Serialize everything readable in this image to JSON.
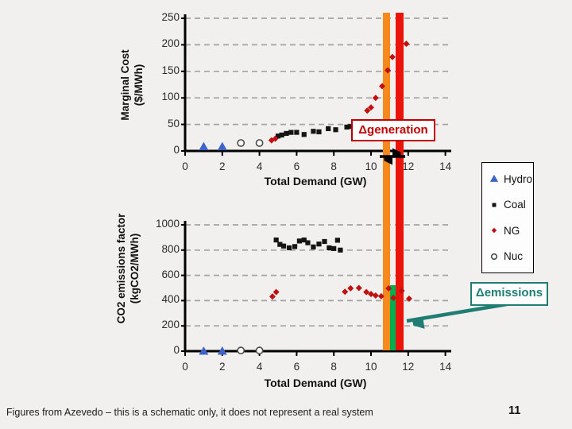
{
  "slide": {
    "footer": "Figures from Azevedo – this is a schematic only, it does not represent a real system",
    "page_number": "11"
  },
  "colors": {
    "hydro_blue": "#3E63C9",
    "coal_black": "#141414",
    "ng_red": "#C01010",
    "nuc_gray": "#4A4A4A",
    "orange_bar": "#F6891B",
    "red_bar": "#EB140B",
    "green_bar": "#00B050",
    "annotation_red": "#C00000",
    "annotation_teal": "#1F7D74",
    "gridline": "#A3A3A3",
    "axis": "#000000",
    "background": "#F1F0EE"
  },
  "legend": {
    "items": [
      {
        "label": "Hydro",
        "marker": "triangle",
        "color": "#3E63C9"
      },
      {
        "label": "Coal",
        "marker": "square",
        "color": "#141414"
      },
      {
        "label": "NG",
        "marker": "diamond",
        "color": "#C01010"
      },
      {
        "label": "Nuc",
        "marker": "circle-open",
        "color": "#4A4A4A"
      }
    ]
  },
  "annotations": {
    "generation": "Δgeneration",
    "emissions": "Δemissions"
  },
  "highlight_bars": {
    "orange_x": 10.83,
    "red_x": 11.54,
    "bar_width_gw": 0.4,
    "green_top_value": 520,
    "note": "orange and red vertical bars span both charts; green band only in bottom chart from 0 to green_top_value"
  },
  "chart_data": [
    {
      "type": "scatter",
      "title": "",
      "xlabel": "Total Demand (GW)",
      "ylabel_line1": "Marginal Cost",
      "ylabel_line2": "($/MWh)",
      "xlim": [
        0,
        14
      ],
      "ylim": [
        0,
        250
      ],
      "xticks": [
        0,
        2,
        4,
        6,
        8,
        10,
        12,
        14
      ],
      "yticks": [
        0,
        50,
        100,
        150,
        200,
        250
      ],
      "grid": "dashed-horizontal",
      "legend_position": "outside-right",
      "series": [
        {
          "name": "Hydro",
          "marker": "triangle",
          "color": "#3E63C9",
          "points": [
            [
              1,
              8
            ],
            [
              2,
              8
            ]
          ]
        },
        {
          "name": "Coal",
          "marker": "square",
          "color": "#141414",
          "points": [
            [
              5.0,
              28
            ],
            [
              5.2,
              30
            ],
            [
              5.45,
              33
            ],
            [
              5.7,
              35
            ],
            [
              6.0,
              35
            ],
            [
              6.4,
              31
            ],
            [
              6.9,
              37
            ],
            [
              7.2,
              36
            ],
            [
              7.7,
              42
            ],
            [
              8.1,
              40
            ],
            [
              8.7,
              45
            ],
            [
              8.9,
              46
            ]
          ]
        },
        {
          "name": "NG",
          "marker": "diamond",
          "color": "#C01010",
          "points": [
            [
              4.65,
              20
            ],
            [
              4.85,
              23
            ],
            [
              9.2,
              49
            ],
            [
              9.4,
              52
            ],
            [
              9.8,
              76
            ],
            [
              10.0,
              82
            ],
            [
              10.25,
              100
            ],
            [
              10.6,
              122
            ],
            [
              10.9,
              152
            ],
            [
              11.15,
              177
            ],
            [
              11.9,
              202
            ]
          ]
        },
        {
          "name": "Nuc",
          "marker": "circle-open",
          "color": "#4A4A4A",
          "points": [
            [
              3,
              15
            ],
            [
              4,
              15
            ]
          ]
        }
      ]
    },
    {
      "type": "scatter",
      "title": "",
      "xlabel": "Total Demand (GW)",
      "ylabel_line1": "CO2 emissions factor",
      "ylabel_line2": "(kgCO2/MWh)",
      "xlim": [
        0,
        14
      ],
      "ylim": [
        0,
        1000
      ],
      "xticks": [
        0,
        2,
        4,
        6,
        8,
        10,
        12,
        14
      ],
      "yticks": [
        0,
        200,
        400,
        600,
        800,
        1000
      ],
      "grid": "dashed-horizontal",
      "series": [
        {
          "name": "Hydro",
          "marker": "triangle",
          "color": "#3E63C9",
          "points": [
            [
              1,
              0
            ],
            [
              2,
              0
            ]
          ]
        },
        {
          "name": "Coal",
          "marker": "square",
          "color": "#141414",
          "points": [
            [
              4.9,
              880
            ],
            [
              5.1,
              845
            ],
            [
              5.3,
              832
            ],
            [
              5.6,
              818
            ],
            [
              5.9,
              828
            ],
            [
              6.15,
              872
            ],
            [
              6.4,
              880
            ],
            [
              6.6,
              858
            ],
            [
              6.9,
              825
            ],
            [
              7.2,
              848
            ],
            [
              7.5,
              868
            ],
            [
              7.75,
              818
            ],
            [
              8.0,
              812
            ],
            [
              8.2,
              878
            ],
            [
              8.35,
              800
            ]
          ]
        },
        {
          "name": "NG",
          "marker": "diamond",
          "color": "#C01010",
          "points": [
            [
              4.7,
              432
            ],
            [
              4.9,
              468
            ],
            [
              8.6,
              470
            ],
            [
              8.9,
              498
            ],
            [
              9.35,
              500
            ],
            [
              9.75,
              468
            ],
            [
              10.0,
              452
            ],
            [
              10.25,
              440
            ],
            [
              10.55,
              435
            ],
            [
              10.95,
              497
            ],
            [
              11.2,
              421
            ],
            [
              11.65,
              478
            ],
            [
              12.05,
              415
            ]
          ]
        },
        {
          "name": "Nuc",
          "marker": "circle-open",
          "color": "#4A4A4A",
          "points": [
            [
              3,
              5
            ],
            [
              4,
              5
            ]
          ]
        }
      ]
    }
  ]
}
